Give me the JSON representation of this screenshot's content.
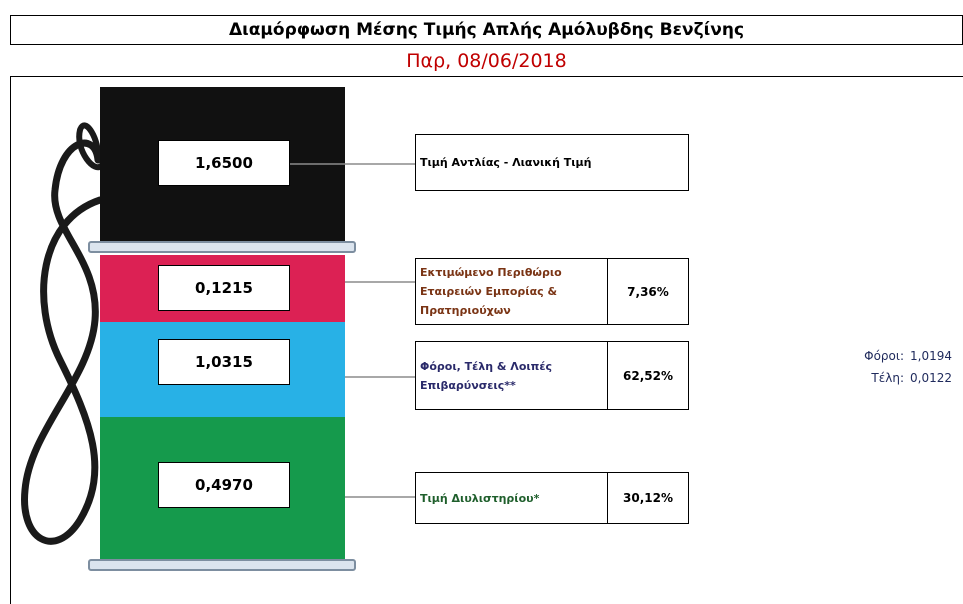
{
  "header": {
    "title": "Διαμόρφωση Μέσης Τιμής Απλής Αμόλυβδης Βενζίνης",
    "date": "Παρ, 08/06/2018"
  },
  "segments": {
    "pump": {
      "value": "1,6500",
      "label": "Τιμή Αντλίας - Λιανική Τιμή"
    },
    "margin": {
      "value": "0,1215",
      "label": "Εκτιμώμενο Περιθώριο Εταιρειών Εμπορίας & Πρατηριούχων",
      "pct": "7,36%"
    },
    "taxes": {
      "value": "1,0315",
      "label": "Φόροι, Τέλη & Λοιπές Επιβαρύνσεις**",
      "pct": "62,52%"
    },
    "refinery": {
      "value": "0,4970",
      "label": "Τιμή Διυλιστηρίου*",
      "pct": "30,12%"
    }
  },
  "breakdown": {
    "taxes_label": "Φόροι:",
    "taxes_value": "1,0194",
    "fees_label": "Τέλη:",
    "fees_value": "0,0122"
  },
  "colors": {
    "pump": "#111111",
    "margin": "#dc2154",
    "taxes": "#28b1e6",
    "refinery": "#159a4c",
    "date": "#c00000"
  }
}
